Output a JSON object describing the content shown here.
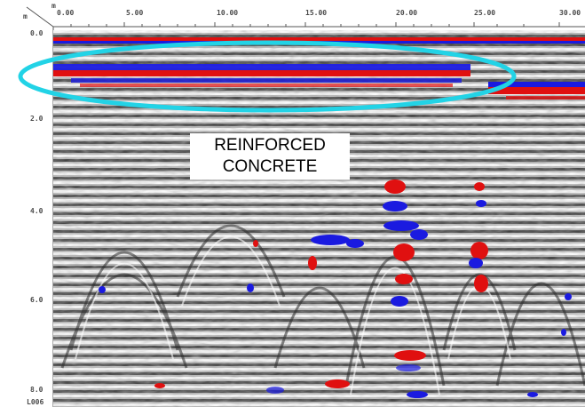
{
  "image": {
    "kind": "GPR radargram",
    "overlay_label_line1": "REINFORCED",
    "overlay_label_line2": "CONCRETE",
    "file_label": "L006",
    "axis_unit_top": "m",
    "axis_unit_left": "m",
    "x_ticks": [
      "0.00",
      "5.00",
      "10.00",
      "15.00",
      "20.00",
      "25.00",
      "30.00"
    ],
    "y_ticks": [
      "0.0",
      "2.0",
      "4.0",
      "6.0",
      "8.0"
    ],
    "colors": {
      "highlight_ellipse": "#22d3e6",
      "positive_reflection": "#e01010",
      "negative_reflection": "#1a1ae0",
      "background": "#ffffff"
    }
  }
}
